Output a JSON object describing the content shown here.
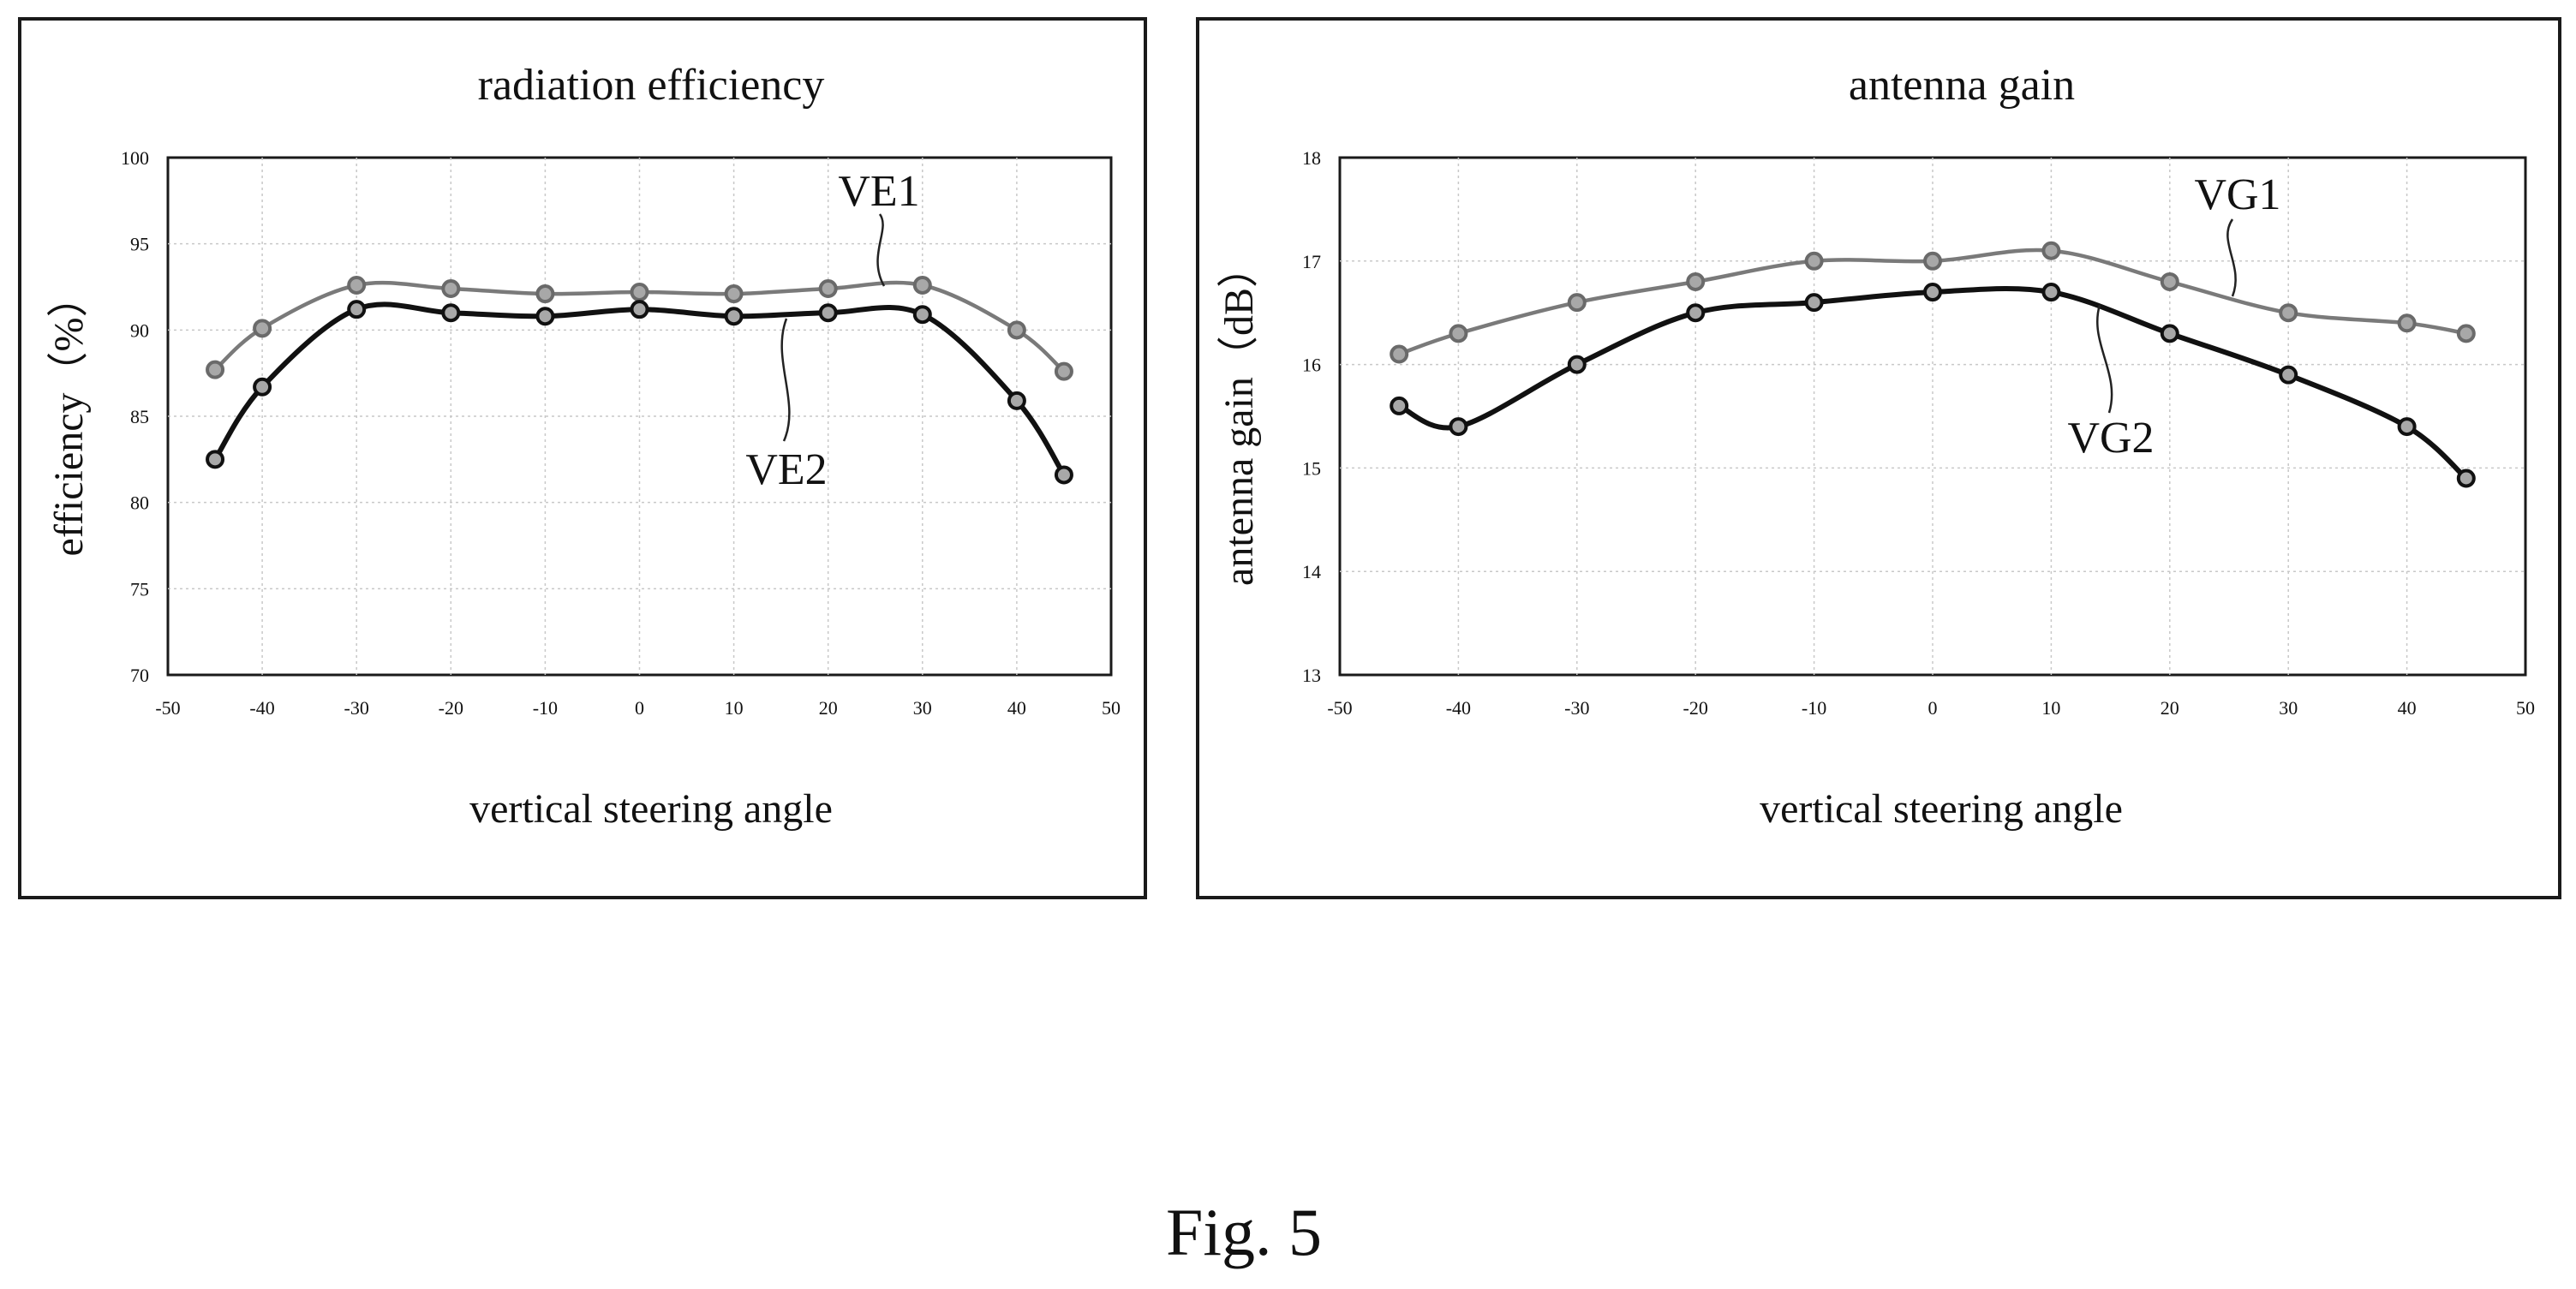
{
  "figure_caption": "Fig. 5",
  "colors": {
    "first_series": "#7a7a7a",
    "second_series": "#111111",
    "marker_fill": "#a8a8a8",
    "grid": "#c8c8c8"
  },
  "chart_data": [
    {
      "type": "line",
      "title": "radiation efficiency",
      "xlabel": "vertical steering angle",
      "ylabel": "efficiency（%）",
      "xlim": [
        -50,
        50
      ],
      "ylim": [
        70,
        100
      ],
      "xticks": [
        -50,
        -40,
        -30,
        -20,
        -10,
        0,
        10,
        20,
        30,
        40,
        50
      ],
      "yticks": [
        70,
        75,
        80,
        85,
        90,
        95,
        100
      ],
      "grid": true,
      "x": [
        -45,
        -40,
        -30,
        -20,
        -10,
        0,
        10,
        20,
        30,
        40,
        45
      ],
      "series": [
        {
          "name": "VE1",
          "values": [
            87.7,
            90.1,
            92.6,
            92.4,
            92.1,
            92.2,
            92.1,
            92.4,
            92.6,
            90.0,
            87.6
          ]
        },
        {
          "name": "VE2",
          "values": [
            82.5,
            86.7,
            91.2,
            91.0,
            90.8,
            91.2,
            90.8,
            91.0,
            90.9,
            85.9,
            81.6
          ]
        }
      ]
    },
    {
      "type": "line",
      "title": "antenna gain",
      "xlabel": "vertical steering angle",
      "ylabel": "antenna gain（dB）",
      "xlim": [
        -50,
        50
      ],
      "ylim": [
        13,
        18
      ],
      "xticks": [
        -50,
        -40,
        -30,
        -20,
        -10,
        0,
        10,
        20,
        30,
        40,
        50
      ],
      "yticks": [
        13,
        14,
        15,
        16,
        17,
        18
      ],
      "grid": true,
      "x": [
        -45,
        -40,
        -30,
        -20,
        -10,
        0,
        10,
        20,
        30,
        40,
        45
      ],
      "series": [
        {
          "name": "VG1",
          "values": [
            16.1,
            16.3,
            16.6,
            16.8,
            17.0,
            17.0,
            17.1,
            16.8,
            16.5,
            16.4,
            16.3
          ]
        },
        {
          "name": "VG2",
          "values": [
            15.6,
            15.4,
            16.0,
            16.5,
            16.6,
            16.7,
            16.7,
            16.3,
            15.9,
            15.4,
            14.9
          ]
        }
      ]
    }
  ]
}
